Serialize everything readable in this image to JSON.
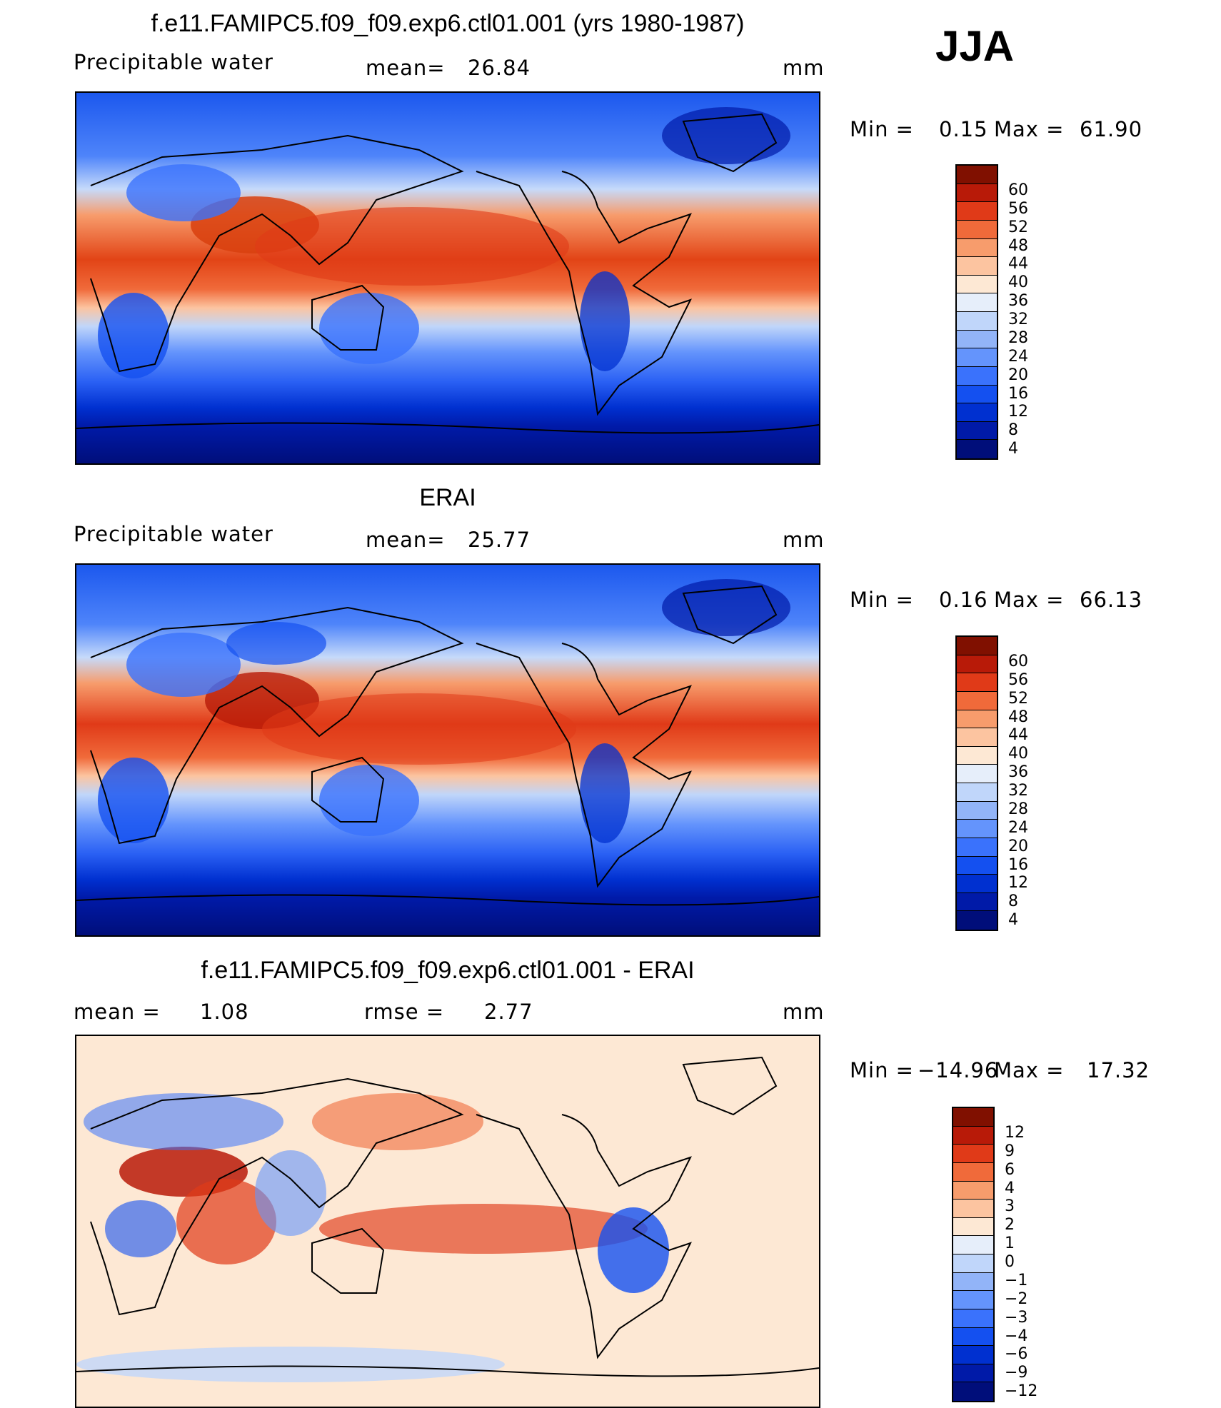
{
  "season": "JJA",
  "chart_data": [
    {
      "type": "heatmap",
      "title": "f.e11.FAMIPC5.f09_f09.exp6.ctl01.001 (yrs 1980-1987)",
      "variable": "Precipitable water",
      "mean_label": "mean=",
      "mean": "26.84",
      "units": "mm",
      "min_label": "Min  =",
      "min": "0.15",
      "max_label": "Max  =",
      "max": "61.90",
      "colorbar_levels": [
        "4",
        "8",
        "12",
        "16",
        "20",
        "24",
        "28",
        "32",
        "36",
        "40",
        "44",
        "48",
        "52",
        "56",
        "60"
      ],
      "colors": [
        "#000e7a",
        "#001aa8",
        "#0030d0",
        "#1450f0",
        "#3a72fc",
        "#6494fc",
        "#92b4f8",
        "#c0d6fa",
        "#e6eefa",
        "#fde8d4",
        "#fcc4a0",
        "#f79c6c",
        "#f06a3a",
        "#e03a18",
        "#b81a08",
        "#801000"
      ]
    },
    {
      "type": "heatmap",
      "title": "ERAI",
      "variable": "Precipitable water",
      "mean_label": "mean=",
      "mean": "25.77",
      "units": "mm",
      "min_label": "Min  =",
      "min": "0.16",
      "max_label": "Max  =",
      "max": "66.13",
      "colorbar_levels": [
        "4",
        "8",
        "12",
        "16",
        "20",
        "24",
        "28",
        "32",
        "36",
        "40",
        "44",
        "48",
        "52",
        "56",
        "60"
      ],
      "colors": [
        "#000e7a",
        "#001aa8",
        "#0030d0",
        "#1450f0",
        "#3a72fc",
        "#6494fc",
        "#92b4f8",
        "#c0d6fa",
        "#e6eefa",
        "#fde8d4",
        "#fcc4a0",
        "#f79c6c",
        "#f06a3a",
        "#e03a18",
        "#b81a08",
        "#801000"
      ]
    },
    {
      "type": "heatmap",
      "title": "f.e11.FAMIPC5.f09_f09.exp6.ctl01.001 - ERAI",
      "mean_label": "mean =",
      "mean": "1.08",
      "rmse_label": "rmse =",
      "rmse": "2.77",
      "units": "mm",
      "min_label": "Min  =",
      "min": "−14.96",
      "max_label": "Max  =",
      "max": "17.32",
      "colorbar_levels": [
        "−12",
        "−9",
        "−6",
        "−4",
        "−3",
        "−2",
        "−1",
        "0",
        "1",
        "2",
        "3",
        "4",
        "6",
        "9",
        "12"
      ],
      "colors": [
        "#000e7a",
        "#001aa8",
        "#0030d0",
        "#1450f0",
        "#3a72fc",
        "#6494fc",
        "#92b4f8",
        "#c0d6fa",
        "#e6eefa",
        "#fde8d4",
        "#fcc4a0",
        "#f79c6c",
        "#f06a3a",
        "#e03a18",
        "#b81a08",
        "#801000"
      ]
    }
  ]
}
